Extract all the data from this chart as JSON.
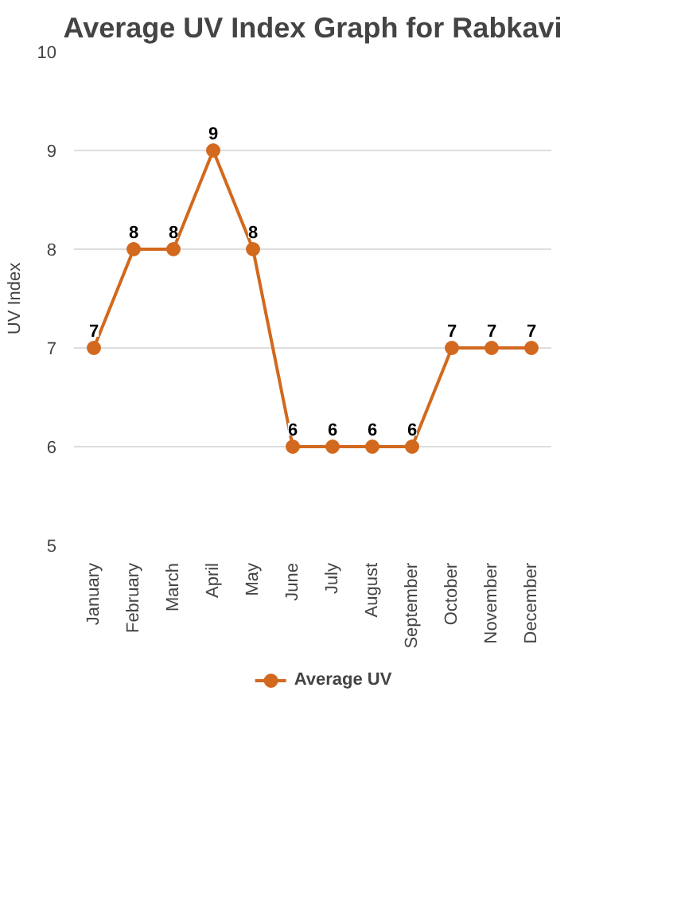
{
  "chart_data": {
    "type": "line",
    "title": "Average UV Index Graph for Rabkavi",
    "ylabel": "UV Index",
    "categories": [
      "January",
      "February",
      "March",
      "April",
      "May",
      "June",
      "July",
      "August",
      "September",
      "October",
      "November",
      "December"
    ],
    "series": [
      {
        "name": "Average UV",
        "color": "#d2691e",
        "values": [
          7,
          8,
          8,
          9,
          8,
          6,
          6,
          6,
          6,
          7,
          7,
          7
        ]
      }
    ],
    "ylim": [
      5,
      10
    ],
    "yticks": [
      5,
      6,
      7,
      8,
      9,
      10
    ],
    "grid": "y",
    "legend": "bottom",
    "marker": "circle",
    "line_style": "solid",
    "data_labels": true
  }
}
